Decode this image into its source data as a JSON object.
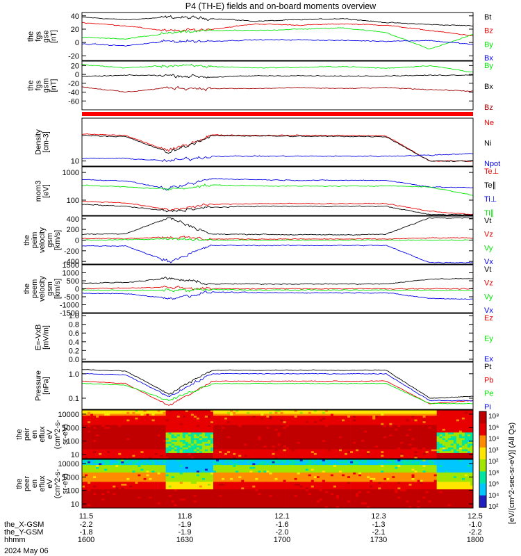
{
  "title": "P4 (TH-E) fields and on-board moments overview",
  "date": "2024 May 06",
  "colors": {
    "black": "#000000",
    "red": "#e80000",
    "green": "#00e600",
    "blue": "#0000e6",
    "darkred": "#a00000",
    "bar": "#ff0000"
  },
  "panels": [
    {
      "id": "fgs-gse",
      "ylabel": [
        "the",
        "fgs",
        "gse",
        "[nT]"
      ],
      "ticks": [
        {
          "v": 40,
          "label": "40"
        },
        {
          "v": 20,
          "label": "20"
        },
        {
          "v": 0,
          "label": "0"
        },
        {
          "v": -20,
          "label": "-20"
        }
      ],
      "legend": [
        {
          "text": "Bt",
          "color": "black"
        },
        {
          "text": "Bz",
          "color": "red"
        },
        {
          "text": "By",
          "color": "green"
        },
        {
          "text": "Bx",
          "color": "blue"
        }
      ]
    },
    {
      "id": "fgs-gsm",
      "ylabel": [
        "the",
        "fgs",
        "gsm",
        "[nT]"
      ],
      "ticks": [
        {
          "v": 20,
          "label": "20"
        },
        {
          "v": 0,
          "label": "0"
        },
        {
          "v": -20,
          "label": "-20"
        },
        {
          "v": -40,
          "label": "-40"
        },
        {
          "v": -60,
          "label": "-60"
        }
      ],
      "legend": [
        {
          "text": "By",
          "color": "green"
        },
        {
          "text": "Bx",
          "color": "black"
        },
        {
          "text": "Bz",
          "color": "darkred"
        }
      ]
    },
    {
      "id": "density",
      "ylabel": [
        "Density",
        "[cm-3]"
      ],
      "ticks": [
        {
          "v": 10,
          "label": "10"
        }
      ],
      "legend": [
        {
          "text": "Ne",
          "color": "red"
        },
        {
          "text": "Ni",
          "color": "black"
        },
        {
          "text": "Npot",
          "color": "blue"
        }
      ]
    },
    {
      "id": "temperature",
      "ylabel": [
        "mom3",
        "[eV]"
      ],
      "ticks": [
        {
          "v": 1000,
          "label": "1000"
        },
        {
          "v": 100,
          "label": "100"
        }
      ],
      "legend": [
        {
          "text": "Te⊥",
          "color": "red"
        },
        {
          "text": "Te∥",
          "color": "black"
        },
        {
          "text": "Ti⊥",
          "color": "blue"
        },
        {
          "text": "Ti∥",
          "color": "green"
        }
      ]
    },
    {
      "id": "ion-velocity",
      "ylabel": [
        "the",
        "peim",
        "velocity",
        "gsm",
        "[km/s]"
      ],
      "ticks": [
        {
          "v": 400,
          "label": "400"
        },
        {
          "v": 200,
          "label": "200"
        },
        {
          "v": 0,
          "label": "0"
        },
        {
          "v": -200,
          "label": "-200"
        },
        {
          "v": -400,
          "label": "-400"
        }
      ],
      "legend": [
        {
          "text": "Vt",
          "color": "black"
        },
        {
          "text": "Vz",
          "color": "red"
        },
        {
          "text": "Vy",
          "color": "green"
        },
        {
          "text": "Vx",
          "color": "blue"
        }
      ]
    },
    {
      "id": "electron-velocity",
      "ylabel": [
        "the",
        "peem",
        "velocity",
        "gsm",
        "[km/s]"
      ],
      "ticks": [
        {
          "v": 1500,
          "label": "1500"
        },
        {
          "v": 1000,
          "label": "1000"
        },
        {
          "v": 500,
          "label": "500"
        },
        {
          "v": 0,
          "label": "0"
        },
        {
          "v": -500,
          "label": "-500"
        },
        {
          "v": -1000,
          "label": "-1000"
        },
        {
          "v": -1500,
          "label": "-1500"
        }
      ],
      "legend": [
        {
          "text": "Vt",
          "color": "black"
        },
        {
          "text": "Vz",
          "color": "red"
        },
        {
          "text": "Vy",
          "color": "green"
        },
        {
          "text": "Vx",
          "color": "blue"
        }
      ]
    },
    {
      "id": "efield",
      "ylabel": [
        "E=-VxB",
        "[mV/m]"
      ],
      "ticks": [
        {
          "v": 1.0,
          "label": "1.0"
        },
        {
          "v": 0.8,
          "label": "0.8"
        },
        {
          "v": 0.6,
          "label": "0.6"
        },
        {
          "v": 0.4,
          "label": "0.4"
        },
        {
          "v": 0.2,
          "label": "0.2"
        },
        {
          "v": 0.0,
          "label": "0.0"
        }
      ],
      "legend": [
        {
          "text": "Ez",
          "color": "red"
        },
        {
          "text": "Ey",
          "color": "green"
        },
        {
          "text": "Ex",
          "color": "blue"
        }
      ]
    },
    {
      "id": "pressure",
      "ylabel": [
        "Pressure",
        "[nPa]"
      ],
      "ticks": [
        {
          "v": 1.0,
          "label": "1.0"
        },
        {
          "v": 0.1,
          "label": "0.1"
        }
      ],
      "legend": [
        {
          "text": "Pt",
          "color": "black"
        },
        {
          "text": "Pb",
          "color": "red"
        },
        {
          "text": "Pe",
          "color": "green"
        },
        {
          "text": "Pi",
          "color": "blue"
        }
      ]
    },
    {
      "id": "ion-spectrogram",
      "ylabel": [
        "the",
        "peir",
        "en",
        "eflux",
        "eV",
        "(cm^2-s-",
        "sr-eV)"
      ],
      "ticks": [
        {
          "v": 10000,
          "label": "10000"
        },
        {
          "v": 1000,
          "label": "1000"
        },
        {
          "v": 100,
          "label": "100"
        },
        {
          "v": 10,
          "label": "10"
        }
      ],
      "legend": []
    },
    {
      "id": "electron-spectrogram",
      "ylabel": [
        "the",
        "peer",
        "en",
        "eflux",
        "eV",
        "(cm^2-s-",
        "sr-eV)"
      ],
      "ticks": [
        {
          "v": 10000,
          "label": "10000"
        },
        {
          "v": 1000,
          "label": "1000"
        },
        {
          "v": 100,
          "label": "100"
        },
        {
          "v": 10,
          "label": "10"
        }
      ],
      "legend": []
    }
  ],
  "colorbar": {
    "label": "[eV/(cm^2-sec-sr-eV)] (All Qs)",
    "ticks": [
      "10⁸",
      "10⁶",
      "10⁴",
      "10³",
      "10²",
      "10⁸",
      "10⁶",
      "10⁴",
      "10²"
    ]
  },
  "axis_rows": [
    {
      "label": "the_X-GSM",
      "values": [
        "-2.2",
        "-1.9",
        "-1.6",
        "-1.3",
        "-1.0"
      ]
    },
    {
      "label": "the_Y-GSM",
      "values": [
        "-1.8",
        "-1.9",
        "-2.0",
        "-2.1",
        "-2.2"
      ]
    },
    {
      "label": "hhmm",
      "values": [
        "1600",
        "1630",
        "1700",
        "1730",
        "1800"
      ]
    }
  ],
  "chart_data": {
    "type": "line",
    "title": "P4 (TH-E) fields and on-board moments overview",
    "x_ticks": [
      "11.5",
      "11.8",
      "12.1",
      "12.3",
      "12.5"
    ],
    "x_time_hhmm": [
      "1600",
      "1630",
      "1700",
      "1730",
      "1800"
    ],
    "xlim": [
      "1600",
      "1800"
    ],
    "subplots": [
      {
        "name": "the fgs gse [nT]",
        "ylim": [
          -27,
          45
        ],
        "events_hhmm": [
          1625,
          1640
        ],
        "series": [
          {
            "name": "Bt",
            "color": "black",
            "base": [
              38,
              34,
              38,
              36,
              32,
              34,
              36,
              30,
              27,
              25
            ]
          },
          {
            "name": "Bz",
            "color": "red",
            "base": [
              30,
              25,
              17,
              20,
              28,
              26,
              28,
              26,
              18,
              10
            ]
          },
          {
            "name": "By",
            "color": "green",
            "base": [
              8,
              5,
              14,
              18,
              18,
              20,
              22,
              15,
              -10,
              12
            ]
          },
          {
            "name": "Bx",
            "color": "blue",
            "base": [
              -2,
              -5,
              2,
              2,
              4,
              4,
              3,
              2,
              3,
              -3
            ]
          }
        ]
      },
      {
        "name": "the fgs gsm [nT]",
        "ylim": [
          -80,
          30
        ],
        "events_hhmm": [
          1625,
          1640
        ],
        "series": [
          {
            "name": "By",
            "color": "green",
            "base": [
              22,
              15,
              20,
              18,
              15,
              16,
              18,
              14,
              20,
              5
            ]
          },
          {
            "name": "Bx",
            "color": "black",
            "base": [
              -5,
              -2,
              -2,
              -6,
              -3,
              -3,
              -4,
              -3,
              -2,
              -1
            ]
          },
          {
            "name": "Bz",
            "color": "darkred",
            "base": [
              -28,
              -40,
              -30,
              -32,
              -32,
              -30,
              -32,
              -30,
              -34,
              -38
            ]
          }
        ]
      },
      {
        "name": "Density [cm-3]",
        "scale": "log",
        "ylim": [
          7,
          200
        ],
        "series": [
          {
            "name": "Ne",
            "color": "red",
            "base": [
              65,
              60,
              20,
              62,
              60,
              60,
              60,
              58,
              10,
              10
            ]
          },
          {
            "name": "Ni",
            "color": "black",
            "base": [
              60,
              55,
              18,
              58,
              58,
              56,
              56,
              55,
              10,
              10
            ]
          },
          {
            "name": "Npot",
            "color": "blue",
            "base": [
              12,
              12,
              10,
              14,
              14,
              14,
              14,
              14,
              15,
              17
            ]
          }
        ]
      },
      {
        "name": "mom3 [eV]",
        "scale": "log",
        "ylim": [
          28,
          1600
        ],
        "series": [
          {
            "name": "Te⊥",
            "color": "red",
            "base": [
              90,
              80,
              45,
              70,
              75,
              75,
              75,
              75,
              40,
              30
            ]
          },
          {
            "name": "Te∥",
            "color": "black",
            "base": [
              70,
              60,
              40,
              55,
              60,
              60,
              60,
              60,
              30,
              30
            ]
          },
          {
            "name": "Ti⊥",
            "color": "blue",
            "base": [
              550,
              500,
              250,
              600,
              550,
              520,
              520,
              520,
              300,
              280
            ]
          },
          {
            "name": "Ti∥",
            "color": "green",
            "base": [
              350,
              300,
              250,
              350,
              330,
              320,
              320,
              330,
              300,
              150
            ]
          }
        ]
      },
      {
        "name": "the peim velocity gsm [km/s]",
        "ylim": [
          -450,
          450
        ],
        "series": [
          {
            "name": "Vt",
            "color": "black",
            "base": [
              110,
              120,
              420,
              110,
              110,
              100,
              100,
              110,
              420,
              420
            ]
          },
          {
            "name": "Vz",
            "color": "red",
            "base": [
              30,
              30,
              60,
              20,
              20,
              20,
              20,
              20,
              40,
              40
            ]
          },
          {
            "name": "Vy",
            "color": "green",
            "base": [
              0,
              10,
              20,
              0,
              0,
              0,
              0,
              0,
              0,
              0
            ]
          },
          {
            "name": "Vx",
            "color": "blue",
            "base": [
              -110,
              -110,
              -400,
              -100,
              -100,
              -100,
              -100,
              -100,
              -420,
              -420
            ]
          }
        ]
      },
      {
        "name": "the peem velocity gsm [km/s]",
        "ylim": [
          -1500,
          1500
        ],
        "series": [
          {
            "name": "Vt",
            "color": "black",
            "base": [
              350,
              400,
              650,
              300,
              300,
              300,
              300,
              300,
              600,
              650
            ]
          },
          {
            "name": "Vz",
            "color": "red",
            "base": [
              0,
              50,
              100,
              0,
              0,
              0,
              0,
              0,
              0,
              0
            ]
          },
          {
            "name": "Vy",
            "color": "green",
            "base": [
              -80,
              -100,
              -100,
              -50,
              -80,
              -80,
              -80,
              -80,
              -100,
              -100
            ]
          },
          {
            "name": "Vx",
            "color": "blue",
            "base": [
              -300,
              -300,
              -600,
              -200,
              -250,
              -250,
              -250,
              -250,
              -600,
              -650
            ]
          }
        ]
      },
      {
        "name": "E=-VxB [mV/m]",
        "ylim": [
          -0.05,
          1.05
        ],
        "series": []
      },
      {
        "name": "Pressure [nPa]",
        "scale": "log",
        "ylim": [
          0.035,
          3.0
        ],
        "series": [
          {
            "name": "Pt",
            "color": "black",
            "base": [
              1.5,
              1.3,
              0.15,
              1.4,
              1.4,
              1.4,
              1.4,
              1.4,
              0.1,
              0.12
            ]
          },
          {
            "name": "Pb",
            "color": "red",
            "base": [
              0.5,
              0.4,
              0.05,
              0.5,
              0.5,
              0.5,
              0.5,
              0.5,
              0.06,
              0.08
            ]
          },
          {
            "name": "Pe",
            "color": "green",
            "base": [
              0.4,
              0.35,
              0.08,
              0.4,
              0.4,
              0.4,
              0.4,
              0.4,
              0.06,
              0.06
            ]
          },
          {
            "name": "Pi",
            "color": "blue",
            "base": [
              1.0,
              0.9,
              0.12,
              1.0,
              1.0,
              1.0,
              1.0,
              1.0,
              0.08,
              0.08
            ]
          }
        ]
      },
      {
        "name": "the peir en eflux eV/(cm^2-s-sr-eV)",
        "type": "heatmap",
        "scale": "log",
        "ylim": [
          5,
          20000
        ]
      },
      {
        "name": "the peer en eflux eV/(cm^2-s-sr-eV)",
        "type": "heatmap",
        "scale": "log",
        "ylim": [
          5,
          20000
        ]
      }
    ]
  }
}
